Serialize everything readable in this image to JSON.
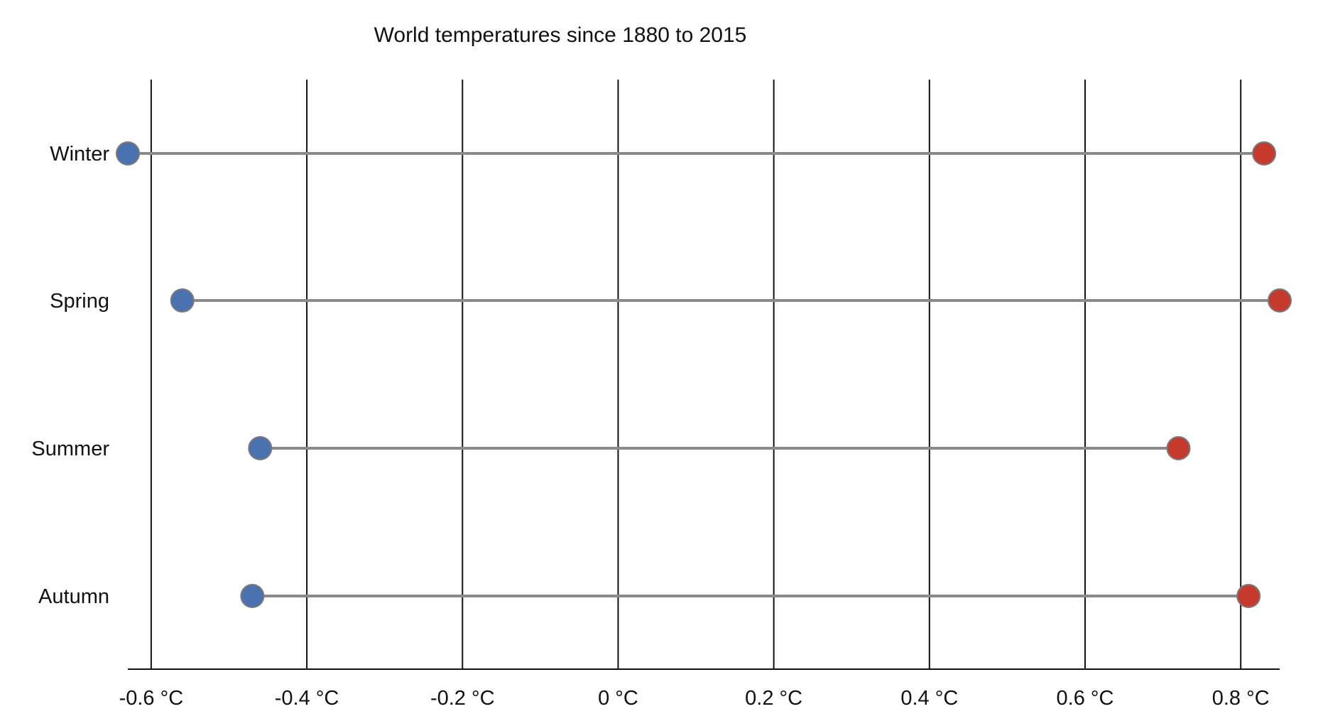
{
  "chart_data": {
    "type": "dumbbell",
    "title": "World temperatures since 1880 to 2015",
    "xlabel": "",
    "ylabel": "",
    "xlim": [
      -0.63,
      0.85
    ],
    "x_ticks": [
      {
        "value": -0.6,
        "label": "-0.6 °C"
      },
      {
        "value": -0.4,
        "label": "-0.4 °C"
      },
      {
        "value": -0.2,
        "label": "-0.2 °C"
      },
      {
        "value": 0,
        "label": "0 °C"
      },
      {
        "value": 0.2,
        "label": "0.2 °C"
      },
      {
        "value": 0.4,
        "label": "0.4 °C"
      },
      {
        "value": 0.6,
        "label": "0.6 °C"
      },
      {
        "value": 0.8,
        "label": "0.8 °C"
      }
    ],
    "grid": "vertical",
    "categories": [
      "Winter",
      "Spring",
      "Summer",
      "Autumn"
    ],
    "series": [
      {
        "color": "#4a72b0",
        "values": [
          -0.63,
          -0.56,
          -0.46,
          -0.47
        ]
      },
      {
        "color": "#c63a2e",
        "values": [
          0.83,
          0.85,
          0.72,
          0.81
        ]
      }
    ],
    "connector_color": "#8a8a8a"
  }
}
